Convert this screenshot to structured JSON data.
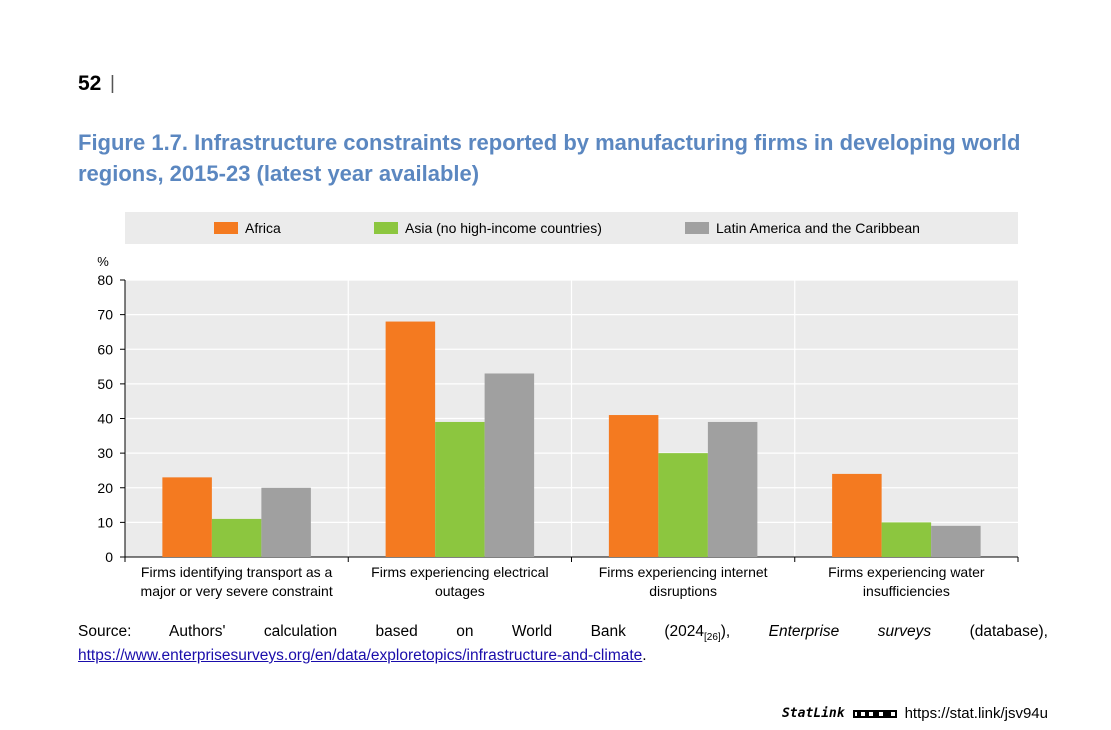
{
  "page": {
    "number": "52",
    "separator": "|"
  },
  "figure_title": "Figure 1.7. Infrastructure constraints reported by manufacturing firms in developing world regions, 2015-23 (latest year available)",
  "chart_data": {
    "type": "bar",
    "categories": [
      [
        "Firms identifying transport as a",
        "major or very severe constraint"
      ],
      [
        "Firms experiencing electrical",
        "outages"
      ],
      [
        "Firms experiencing internet",
        "disruptions"
      ],
      [
        "Firms experiencing water",
        "insufficiencies"
      ]
    ],
    "series": [
      {
        "name": "Africa",
        "color": "#f47a20",
        "values": [
          23,
          68,
          41,
          24
        ]
      },
      {
        "name": "Asia (no high-income countries)",
        "color": "#8cc63f",
        "values": [
          11,
          39,
          30,
          10
        ]
      },
      {
        "name": "Latin America and the Caribbean",
        "color": "#a0a0a0",
        "values": [
          20,
          53,
          39,
          9
        ]
      }
    ],
    "ylabel": "%",
    "ylim": [
      0,
      80
    ],
    "yticks": [
      0,
      10,
      20,
      30,
      40,
      50,
      60,
      70,
      80
    ],
    "legend_position": "top"
  },
  "source": {
    "label": "Source:",
    "text": "Authors' calculation based on World Bank (2024",
    "ref": "[26]",
    "after_ref": "),",
    "italic": "Enterprise surveys",
    "tail": "(database),",
    "url": "https://www.enterprisesurveys.org/en/data/exploretopics/infrastructure-and-climate",
    "end": "."
  },
  "statlink": {
    "brand": "StatLink",
    "url": "https://stat.link/jsv94u"
  }
}
